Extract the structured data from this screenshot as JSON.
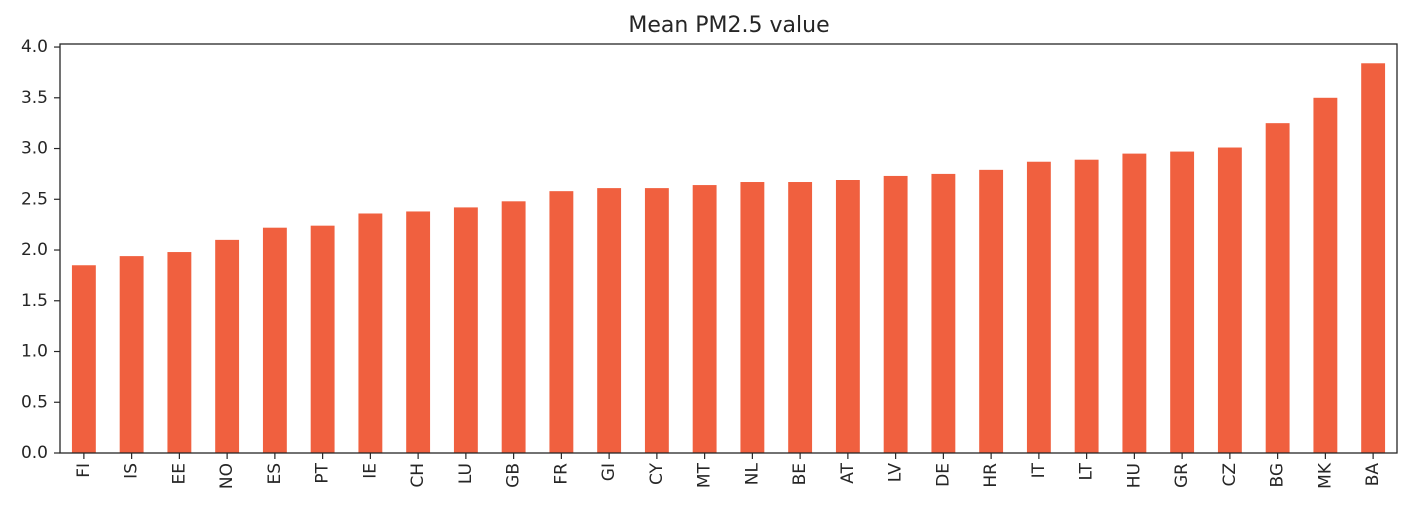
{
  "chart_data": {
    "type": "bar",
    "title": "Mean PM2.5 value",
    "xlabel": "",
    "ylabel": "",
    "categories": [
      "FI",
      "IS",
      "EE",
      "NO",
      "ES",
      "PT",
      "IE",
      "CH",
      "LU",
      "GB",
      "FR",
      "GI",
      "CY",
      "MT",
      "NL",
      "BE",
      "AT",
      "LV",
      "DE",
      "HR",
      "IT",
      "LT",
      "HU",
      "GR",
      "CZ",
      "BG",
      "MK",
      "BA"
    ],
    "values": [
      1.85,
      1.94,
      1.98,
      2.1,
      2.22,
      2.24,
      2.36,
      2.38,
      2.42,
      2.48,
      2.58,
      2.61,
      2.61,
      2.64,
      2.67,
      2.67,
      2.69,
      2.73,
      2.75,
      2.79,
      2.87,
      2.89,
      2.95,
      2.97,
      3.01,
      3.25,
      3.5,
      3.84
    ],
    "ylim": [
      0,
      4.03
    ],
    "yticks": [
      0.0,
      0.5,
      1.0,
      1.5,
      2.0,
      2.5,
      3.0,
      3.5,
      4.0
    ],
    "ytick_labels": [
      "0.0",
      "0.5",
      "1.0",
      "1.5",
      "2.0",
      "2.5",
      "3.0",
      "3.5",
      "4.0"
    ],
    "bar_color": "#F0603F",
    "grid": false,
    "legend": false
  }
}
